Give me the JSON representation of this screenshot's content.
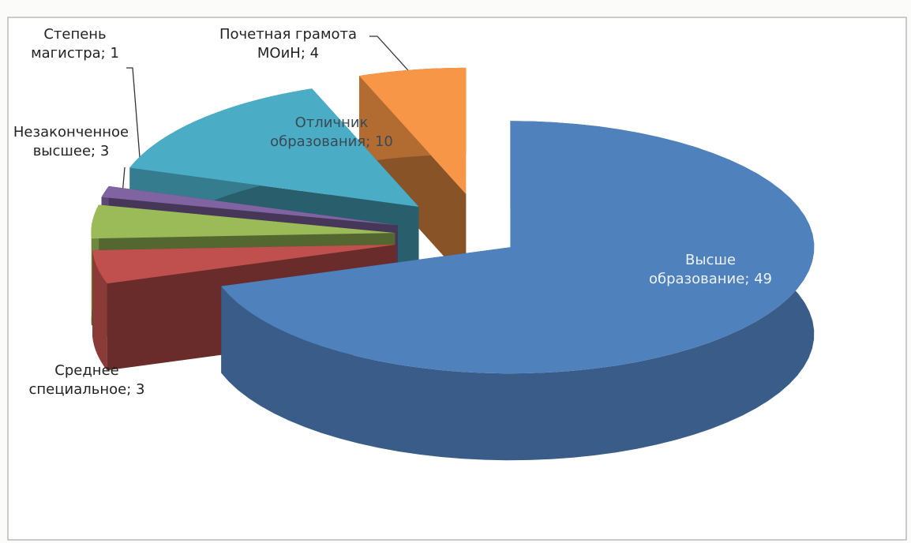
{
  "chart_data": {
    "type": "pie",
    "three_d": true,
    "categories": [
      "Высше образование",
      "Среднее специальное",
      "Незаконченное высшее",
      "Степень магистра",
      "Отличник образования",
      "Почетная грамота МОиН"
    ],
    "values": [
      49,
      3,
      3,
      1,
      10,
      4
    ],
    "colors": [
      "#4f81bd",
      "#c0504d",
      "#9bbb59",
      "#8064a2",
      "#4bacc6",
      "#f79646"
    ],
    "label_separator": "; "
  }
}
